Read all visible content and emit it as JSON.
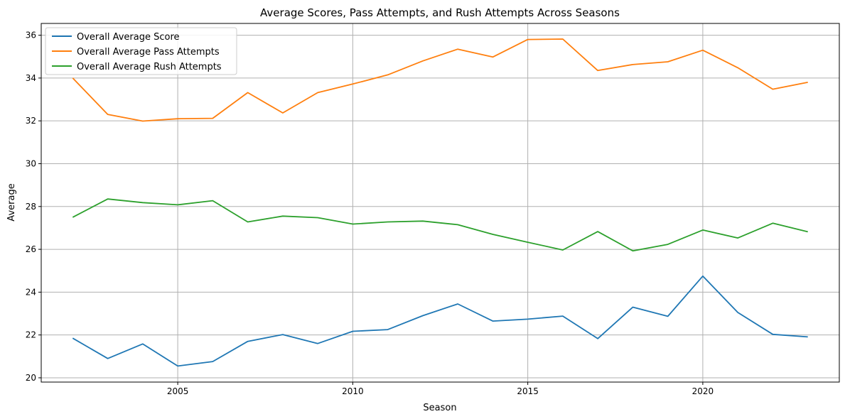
{
  "chart_data": {
    "type": "line",
    "title": "Average Scores, Pass Attempts, and Rush Attempts Across Seasons",
    "xlabel": "Season",
    "ylabel": "Average",
    "xlim": [
      2001.1,
      2023.9
    ],
    "ylim": [
      19.8,
      36.55
    ],
    "xticks": [
      2005,
      2010,
      2015,
      2020
    ],
    "yticks": [
      20,
      22,
      24,
      26,
      28,
      30,
      32,
      34,
      36
    ],
    "grid": true,
    "legend": "top-left",
    "x": [
      2002,
      2003,
      2004,
      2005,
      2006,
      2007,
      2008,
      2009,
      2010,
      2011,
      2012,
      2013,
      2014,
      2015,
      2016,
      2017,
      2018,
      2019,
      2020,
      2021,
      2022,
      2023
    ],
    "series": [
      {
        "name": "Overall Average Score",
        "color": "#1f77b4",
        "values": [
          21.85,
          20.9,
          21.58,
          20.55,
          20.76,
          21.7,
          22.02,
          21.6,
          22.17,
          22.25,
          22.9,
          23.45,
          22.65,
          22.74,
          22.88,
          21.83,
          23.3,
          22.87,
          24.75,
          23.05,
          22.03,
          21.91
        ]
      },
      {
        "name": "Overall Average Pass Attempts",
        "color": "#ff7f0e",
        "values": [
          34.0,
          32.3,
          31.99,
          32.1,
          32.12,
          33.32,
          32.37,
          33.32,
          33.72,
          34.15,
          34.8,
          35.35,
          34.98,
          35.8,
          35.82,
          34.35,
          34.63,
          34.76,
          35.3,
          34.48,
          33.48,
          33.8
        ]
      },
      {
        "name": "Overall Average Rush Attempts",
        "color": "#2ca02c",
        "values": [
          27.5,
          28.35,
          28.18,
          28.08,
          28.27,
          27.28,
          27.55,
          27.48,
          27.18,
          27.28,
          27.32,
          27.15,
          26.7,
          26.33,
          25.97,
          26.83,
          25.93,
          26.23,
          26.9,
          26.53,
          27.22,
          26.82
        ]
      }
    ]
  }
}
